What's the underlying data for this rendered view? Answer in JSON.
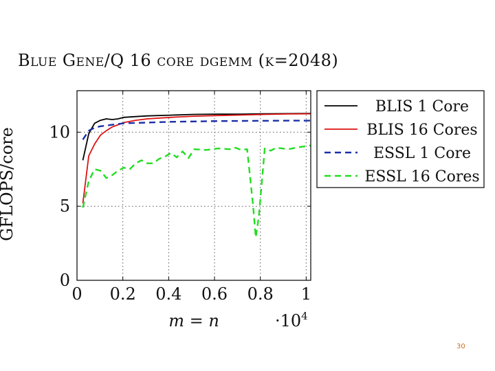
{
  "slide": {
    "title": "Blue Gene/Q 16 core dgemm (k=2048)",
    "page_number": "30"
  },
  "chart_data": {
    "type": "line",
    "xlabel": "m = n",
    "x_multiplier_label": "·10",
    "x_multiplier_exponent": "4",
    "ylabel": "GFLOPS/core",
    "xlim": [
      0,
      10200
    ],
    "ylim": [
      0,
      12.8
    ],
    "x_ticks": [
      {
        "value": 0,
        "label": "0"
      },
      {
        "value": 2000,
        "label": "0.2"
      },
      {
        "value": 4000,
        "label": "0.4"
      },
      {
        "value": 6000,
        "label": "0.6"
      },
      {
        "value": 8000,
        "label": "0.8"
      },
      {
        "value": 10000,
        "label": "1"
      }
    ],
    "y_ticks": [
      {
        "value": 0,
        "label": "0"
      },
      {
        "value": 5,
        "label": "5"
      },
      {
        "value": 10,
        "label": "10"
      }
    ],
    "grid": true,
    "legend_position": "top-right",
    "series": [
      {
        "name": "BLIS 1 Core",
        "color": "#000000",
        "dash": "solid",
        "points": [
          [
            256,
            8.1
          ],
          [
            512,
            9.9
          ],
          [
            768,
            10.6
          ],
          [
            1024,
            10.8
          ],
          [
            1280,
            10.9
          ],
          [
            1536,
            10.85
          ],
          [
            1792,
            10.9
          ],
          [
            2048,
            11.0
          ],
          [
            2560,
            11.05
          ],
          [
            3072,
            11.1
          ],
          [
            4096,
            11.15
          ],
          [
            5120,
            11.2
          ],
          [
            6144,
            11.22
          ],
          [
            7168,
            11.22
          ],
          [
            8192,
            11.24
          ],
          [
            9216,
            11.25
          ],
          [
            10240,
            11.26
          ]
        ]
      },
      {
        "name": "BLIS 16 Cores",
        "color": "#dd1111",
        "dash": "solid",
        "points": [
          [
            256,
            5.2
          ],
          [
            512,
            8.4
          ],
          [
            768,
            9.2
          ],
          [
            1024,
            9.8
          ],
          [
            1280,
            10.1
          ],
          [
            1536,
            10.35
          ],
          [
            1792,
            10.5
          ],
          [
            2048,
            10.65
          ],
          [
            2560,
            10.8
          ],
          [
            3072,
            10.9
          ],
          [
            4096,
            11.0
          ],
          [
            5120,
            11.08
          ],
          [
            6144,
            11.12
          ],
          [
            7168,
            11.16
          ],
          [
            8192,
            11.2
          ],
          [
            9216,
            11.23
          ],
          [
            10240,
            11.24
          ]
        ]
      },
      {
        "name": "ESSL 1 Core",
        "color": "#1a2ea8",
        "dash": "dashed",
        "points": [
          [
            256,
            9.5
          ],
          [
            512,
            10.1
          ],
          [
            768,
            10.3
          ],
          [
            1024,
            10.4
          ],
          [
            1280,
            10.45
          ],
          [
            1536,
            10.5
          ],
          [
            1792,
            10.55
          ],
          [
            2048,
            10.6
          ],
          [
            3072,
            10.65
          ],
          [
            4096,
            10.7
          ],
          [
            5120,
            10.72
          ],
          [
            6144,
            10.75
          ],
          [
            7168,
            10.76
          ],
          [
            8192,
            10.77
          ],
          [
            9216,
            10.78
          ],
          [
            10240,
            10.78
          ]
        ]
      },
      {
        "name": "ESSL 16 Cores",
        "color": "#22dd22",
        "dash": "dashed",
        "points": [
          [
            256,
            4.9
          ],
          [
            512,
            6.7
          ],
          [
            768,
            7.5
          ],
          [
            1024,
            7.4
          ],
          [
            1280,
            6.9
          ],
          [
            1536,
            7.1
          ],
          [
            1792,
            7.4
          ],
          [
            2048,
            7.6
          ],
          [
            2304,
            7.5
          ],
          [
            2560,
            7.9
          ],
          [
            2816,
            8.1
          ],
          [
            3072,
            7.9
          ],
          [
            3328,
            7.9
          ],
          [
            3584,
            8.2
          ],
          [
            3840,
            8.35
          ],
          [
            4096,
            8.6
          ],
          [
            4352,
            8.3
          ],
          [
            4608,
            8.7
          ],
          [
            4864,
            8.25
          ],
          [
            5120,
            8.85
          ],
          [
            5632,
            8.8
          ],
          [
            6144,
            8.9
          ],
          [
            6656,
            8.85
          ],
          [
            6912,
            8.95
          ],
          [
            7168,
            8.8
          ],
          [
            7424,
            8.85
          ],
          [
            7680,
            5.1
          ],
          [
            7800,
            2.9
          ],
          [
            7936,
            4.3
          ],
          [
            8192,
            8.9
          ],
          [
            8448,
            8.75
          ],
          [
            8704,
            8.95
          ],
          [
            9216,
            8.85
          ],
          [
            9728,
            9.0
          ],
          [
            10240,
            9.1
          ]
        ]
      }
    ]
  }
}
